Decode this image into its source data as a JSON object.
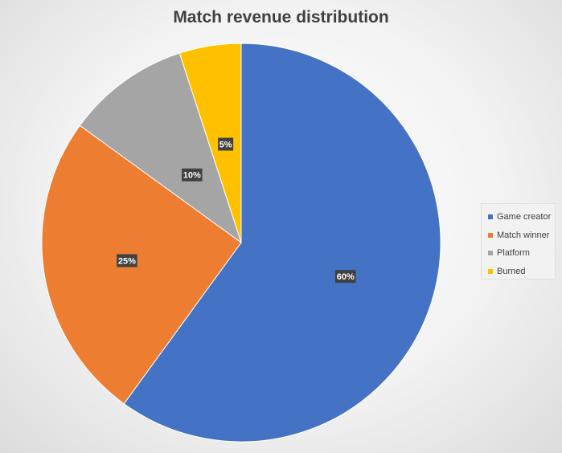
{
  "chart_data": {
    "type": "pie",
    "title": "Match revenue distribution",
    "slices": [
      {
        "label": "Game creator",
        "value": 60,
        "data_label": "60%",
        "color": "#4472C4"
      },
      {
        "label": "Match winner",
        "value": 25,
        "data_label": "25%",
        "color": "#ED7D31"
      },
      {
        "label": "Platform",
        "value": 10,
        "data_label": "10%",
        "color": "#A5A5A5"
      },
      {
        "label": "Burned",
        "value": 5,
        "data_label": "5%",
        "color": "#FFC000"
      }
    ],
    "legend_position": "right",
    "start": "12 o'clock, clockwise"
  }
}
